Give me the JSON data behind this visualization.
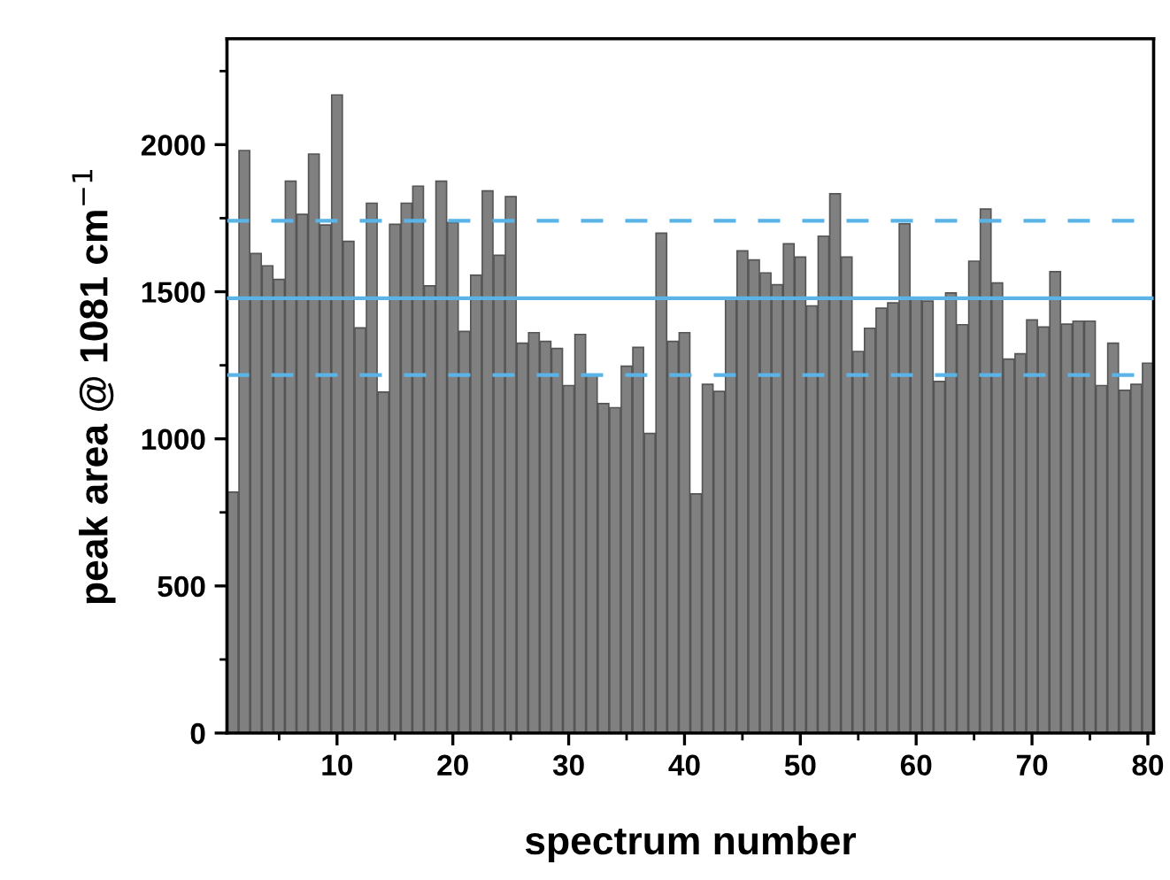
{
  "chart_data": {
    "type": "bar",
    "xlabel": "spectrum number",
    "ylabel": "peak area @ 1081 cm$^{−1}$",
    "x": [
      1,
      2,
      3,
      4,
      5,
      6,
      7,
      8,
      9,
      10,
      11,
      12,
      13,
      14,
      15,
      16,
      17,
      18,
      19,
      20,
      21,
      22,
      23,
      24,
      25,
      26,
      27,
      28,
      29,
      30,
      31,
      32,
      33,
      34,
      35,
      36,
      37,
      38,
      39,
      40,
      41,
      42,
      43,
      44,
      45,
      46,
      47,
      48,
      49,
      50,
      51,
      52,
      53,
      54,
      55,
      56,
      57,
      58,
      59,
      60,
      61,
      62,
      63,
      64,
      65,
      66,
      67,
      68,
      69,
      70,
      71,
      72,
      73,
      74,
      75,
      76,
      77,
      78,
      79,
      80
    ],
    "values": [
      819,
      1980,
      1630,
      1588,
      1542,
      1876,
      1763,
      1968,
      1727,
      2169,
      1671,
      1377,
      1801,
      1159,
      1729,
      1801,
      1859,
      1520,
      1876,
      1735,
      1365,
      1556,
      1843,
      1624,
      1823,
      1325,
      1361,
      1331,
      1307,
      1181,
      1355,
      1217,
      1120,
      1106,
      1247,
      1311,
      1018,
      1699,
      1331,
      1361,
      813,
      1185,
      1161,
      1478,
      1639,
      1608,
      1564,
      1524,
      1663,
      1618,
      1452,
      1689,
      1833,
      1618,
      1297,
      1376,
      1444,
      1462,
      1731,
      1478,
      1468,
      1195,
      1496,
      1388,
      1604,
      1781,
      1530,
      1271,
      1289,
      1404,
      1380,
      1568,
      1390,
      1400,
      1400,
      1181,
      1325,
      1165,
      1185,
      1257
    ],
    "color": "#808080",
    "xlim": [
      0.5,
      80.5
    ],
    "xticks": [
      10,
      20,
      30,
      40,
      50,
      60,
      70,
      80
    ],
    "ylim": [
      0,
      2360
    ],
    "yticks": [
      0,
      500,
      1000,
      1500,
      2000
    ],
    "ref_lines": [
      {
        "axis": "y",
        "value": 1741,
        "color": "#5ab4e8",
        "line_style": "dashed"
      },
      {
        "axis": "y",
        "value": 1478,
        "color": "#5ab4e8",
        "line_style": "solid"
      },
      {
        "axis": "y",
        "value": 1217,
        "color": "#5ab4e8",
        "line_style": "dashed"
      }
    ],
    "grid": false
  }
}
